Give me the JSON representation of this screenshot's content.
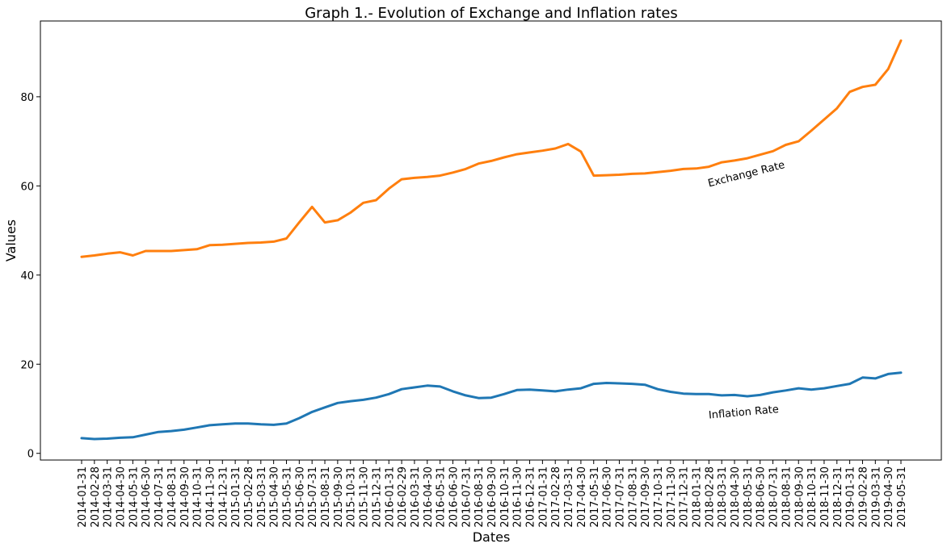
{
  "chart_data": {
    "type": "line",
    "title": "Graph 1.- Evolution of Exchange and Inflation rates",
    "xlabel": "Dates",
    "ylabel": "Values",
    "ylim": [
      -1.5,
      97
    ],
    "yticks": [
      0,
      20,
      40,
      60,
      80
    ],
    "grid": false,
    "x": [
      "2014-01-31",
      "2014-02-28",
      "2014-03-31",
      "2014-04-30",
      "2014-05-31",
      "2014-06-30",
      "2014-07-31",
      "2014-08-31",
      "2014-09-30",
      "2014-10-31",
      "2014-11-30",
      "2014-12-31",
      "2015-01-31",
      "2015-02-28",
      "2015-03-31",
      "2015-04-30",
      "2015-05-31",
      "2015-06-30",
      "2015-07-31",
      "2015-08-31",
      "2015-09-30",
      "2015-10-31",
      "2015-11-30",
      "2015-12-31",
      "2016-01-31",
      "2016-02-29",
      "2016-03-31",
      "2016-04-30",
      "2016-05-31",
      "2016-06-30",
      "2016-07-31",
      "2016-08-31",
      "2016-09-30",
      "2016-10-31",
      "2016-11-30",
      "2016-12-31",
      "2017-01-31",
      "2017-02-28",
      "2017-03-31",
      "2017-04-30",
      "2017-05-31",
      "2017-06-30",
      "2017-07-31",
      "2017-08-31",
      "2017-09-30",
      "2017-10-31",
      "2017-11-30",
      "2017-12-31",
      "2018-01-31",
      "2018-02-28",
      "2018-03-31",
      "2018-04-30",
      "2018-05-31",
      "2018-06-30",
      "2018-07-31",
      "2018-08-31",
      "2018-09-30",
      "2018-10-31",
      "2018-11-30",
      "2018-12-31",
      "2019-01-31",
      "2019-02-28",
      "2019-03-31",
      "2019-04-30",
      "2019-05-31"
    ],
    "series": [
      {
        "name": "Exchange Rate",
        "color": "#ff7f0e",
        "values": [
          44.1,
          44.4,
          44.8,
          45.1,
          44.4,
          45.4,
          45.4,
          45.4,
          45.6,
          45.8,
          46.7,
          46.8,
          47.0,
          47.2,
          47.3,
          47.5,
          48.2,
          51.8,
          55.3,
          51.8,
          52.3,
          54.0,
          56.2,
          56.8,
          59.4,
          61.5,
          61.8,
          62.0,
          62.3,
          63.0,
          63.8,
          65.0,
          65.6,
          66.4,
          67.1,
          67.5,
          67.9,
          68.4,
          69.4,
          67.7,
          62.3,
          62.4,
          62.5,
          62.7,
          62.8,
          63.1,
          63.4,
          63.8,
          63.9,
          64.3,
          65.3,
          65.7,
          66.2,
          67.0,
          67.8,
          69.2,
          70.0,
          72.4,
          74.9,
          77.4,
          81.1,
          82.2,
          82.7,
          86.2,
          92.6
        ]
      },
      {
        "name": "Inflation Rate",
        "color": "#1f77b4",
        "values": [
          3.4,
          3.2,
          3.3,
          3.5,
          3.6,
          4.2,
          4.8,
          5.0,
          5.3,
          5.8,
          6.3,
          6.5,
          6.7,
          6.7,
          6.5,
          6.4,
          6.7,
          7.9,
          9.3,
          10.3,
          11.3,
          11.7,
          12.0,
          12.5,
          13.3,
          14.4,
          14.8,
          15.2,
          15.0,
          13.9,
          13.0,
          12.4,
          12.5,
          13.3,
          14.2,
          14.3,
          14.1,
          13.9,
          14.3,
          14.6,
          15.6,
          15.8,
          15.7,
          15.6,
          15.4,
          14.4,
          13.8,
          13.4,
          13.3,
          13.3,
          13.0,
          13.1,
          12.8,
          13.1,
          13.7,
          14.1,
          14.6,
          14.3,
          14.6,
          15.1,
          15.6,
          17.0,
          16.8,
          17.8,
          18.1
        ]
      }
    ],
    "annotations": [
      {
        "text": "Exchange Rate",
        "x": "2018-02-28",
        "y": 59.8,
        "rotation": 14
      },
      {
        "text": "Inflation Rate",
        "x": "2018-02-28",
        "y": 7.8,
        "rotation": 5
      }
    ]
  }
}
